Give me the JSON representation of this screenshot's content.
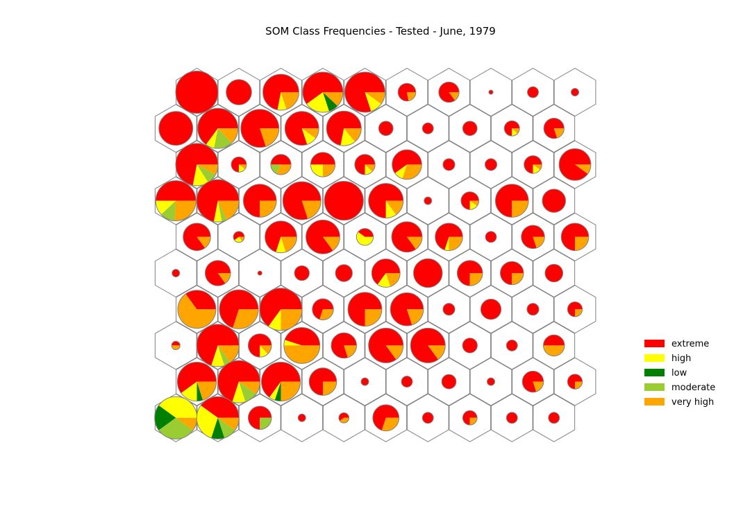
{
  "chart_data": {
    "type": "som-hex-pie",
    "title": "SOM Class Frequencies - Tested - June, 1979",
    "grid": {
      "rows": 10,
      "cols": 10
    },
    "classes": [
      "extreme",
      "high",
      "low",
      "moderate",
      "very high"
    ],
    "colors": {
      "extreme": "#ff0000",
      "high": "#ffff00",
      "low": "#008000",
      "moderate": "#9acd32",
      "very high": "#ffa500"
    },
    "legend": {
      "position": "right",
      "entries": [
        "extreme",
        "high",
        "low",
        "moderate",
        "very high"
      ]
    },
    "cells": [
      {
        "row": 0,
        "col": 0,
        "radius": 1.0,
        "fractions": {
          "extreme": 1.0
        }
      },
      {
        "row": 0,
        "col": 1,
        "radius": 0.6,
        "fractions": {
          "extreme": 1.0
        }
      },
      {
        "row": 0,
        "col": 2,
        "radius": 0.85,
        "fractions": {
          "extreme": 0.72,
          "high": 0.08,
          "very high": 0.2
        }
      },
      {
        "row": 0,
        "col": 3,
        "radius": 0.95,
        "fractions": {
          "extreme": 0.6,
          "high": 0.2,
          "low": 0.08,
          "very high": 0.12
        }
      },
      {
        "row": 0,
        "col": 4,
        "radius": 0.95,
        "fractions": {
          "extreme": 0.8,
          "high": 0.1,
          "very high": 0.1
        }
      },
      {
        "row": 0,
        "col": 5,
        "radius": 0.42,
        "fractions": {
          "extreme": 0.78,
          "very high": 0.22
        }
      },
      {
        "row": 0,
        "col": 6,
        "radius": 0.48,
        "fractions": {
          "extreme": 0.85,
          "very high": 0.15
        }
      },
      {
        "row": 0,
        "col": 7,
        "radius": 0.1,
        "fractions": {
          "extreme": 1.0
        }
      },
      {
        "row": 0,
        "col": 8,
        "radius": 0.26,
        "fractions": {
          "extreme": 1.0
        }
      },
      {
        "row": 0,
        "col": 9,
        "radius": 0.18,
        "fractions": {
          "extreme": 1.0
        }
      },
      {
        "row": 1,
        "col": 0,
        "radius": 0.8,
        "fractions": {
          "extreme": 1.0
        }
      },
      {
        "row": 1,
        "col": 1,
        "radius": 0.95,
        "fractions": {
          "extreme": 0.65,
          "high": 0.07,
          "moderate": 0.15,
          "very high": 0.13
        }
      },
      {
        "row": 1,
        "col": 2,
        "radius": 0.9,
        "fractions": {
          "extreme": 0.8,
          "very high": 0.2
        }
      },
      {
        "row": 1,
        "col": 3,
        "radius": 0.8,
        "fractions": {
          "extreme": 0.8,
          "high": 0.1,
          "very high": 0.1
        }
      },
      {
        "row": 1,
        "col": 4,
        "radius": 0.82,
        "fractions": {
          "extreme": 0.72,
          "high": 0.14,
          "very high": 0.14
        }
      },
      {
        "row": 1,
        "col": 5,
        "radius": 0.34,
        "fractions": {
          "extreme": 1.0
        }
      },
      {
        "row": 1,
        "col": 6,
        "radius": 0.26,
        "fractions": {
          "extreme": 1.0
        }
      },
      {
        "row": 1,
        "col": 7,
        "radius": 0.34,
        "fractions": {
          "extreme": 1.0
        }
      },
      {
        "row": 1,
        "col": 8,
        "radius": 0.36,
        "fractions": {
          "extreme": 0.75,
          "high": 0.13,
          "very high": 0.12
        }
      },
      {
        "row": 1,
        "col": 9,
        "radius": 0.48,
        "fractions": {
          "extreme": 0.8,
          "very high": 0.2
        }
      },
      {
        "row": 2,
        "col": 0,
        "radius": 1.0,
        "fractions": {
          "extreme": 0.72,
          "high": 0.12,
          "moderate": 0.08,
          "very high": 0.08
        }
      },
      {
        "row": 2,
        "col": 1,
        "radius": 0.36,
        "fractions": {
          "extreme": 0.75,
          "high": 0.15,
          "very high": 0.1
        }
      },
      {
        "row": 2,
        "col": 2,
        "radius": 0.48,
        "fractions": {
          "extreme": 0.5,
          "moderate": 0.18,
          "very high": 0.32
        }
      },
      {
        "row": 2,
        "col": 3,
        "radius": 0.58,
        "fractions": {
          "extreme": 0.5,
          "high": 0.25,
          "very high": 0.25
        }
      },
      {
        "row": 2,
        "col": 4,
        "radius": 0.48,
        "fractions": {
          "extreme": 0.75,
          "high": 0.13,
          "very high": 0.12
        }
      },
      {
        "row": 2,
        "col": 5,
        "radius": 0.7,
        "fractions": {
          "extreme": 0.6,
          "high": 0.1,
          "very high": 0.3
        }
      },
      {
        "row": 2,
        "col": 6,
        "radius": 0.28,
        "fractions": {
          "extreme": 1.0
        }
      },
      {
        "row": 2,
        "col": 7,
        "radius": 0.28,
        "fractions": {
          "extreme": 1.0
        }
      },
      {
        "row": 2,
        "col": 8,
        "radius": 0.42,
        "fractions": {
          "extreme": 0.75,
          "high": 0.15,
          "very high": 0.1
        }
      },
      {
        "row": 2,
        "col": 9,
        "radius": 0.75,
        "fractions": {
          "extreme": 0.9,
          "very high": 0.1
        }
      },
      {
        "row": 3,
        "col": 0,
        "radius": 0.95,
        "fractions": {
          "extreme": 0.5,
          "high": 0.12,
          "moderate": 0.12,
          "very high": 0.26
        }
      },
      {
        "row": 3,
        "col": 1,
        "radius": 1.0,
        "fractions": {
          "extreme": 0.72,
          "high": 0.06,
          "moderate": 0.04,
          "very high": 0.18
        }
      },
      {
        "row": 3,
        "col": 2,
        "radius": 0.78,
        "fractions": {
          "extreme": 0.75,
          "very high": 0.25
        }
      },
      {
        "row": 3,
        "col": 3,
        "radius": 0.9,
        "fractions": {
          "extreme": 0.8,
          "very high": 0.2
        }
      },
      {
        "row": 3,
        "col": 4,
        "radius": 0.92,
        "fractions": {
          "extreme": 1.0
        }
      },
      {
        "row": 3,
        "col": 5,
        "radius": 0.82,
        "fractions": {
          "extreme": 0.75,
          "high": 0.1,
          "very high": 0.15
        }
      },
      {
        "row": 3,
        "col": 6,
        "radius": 0.18,
        "fractions": {
          "extreme": 1.0
        }
      },
      {
        "row": 3,
        "col": 7,
        "radius": 0.42,
        "fractions": {
          "extreme": 0.75,
          "high": 0.15,
          "very high": 0.1
        }
      },
      {
        "row": 3,
        "col": 8,
        "radius": 0.78,
        "fractions": {
          "extreme": 0.75,
          "very high": 0.25
        }
      },
      {
        "row": 3,
        "col": 9,
        "radius": 0.55,
        "fractions": {
          "extreme": 1.0
        }
      },
      {
        "row": 4,
        "col": 0,
        "radius": 0.65,
        "fractions": {
          "extreme": 0.85,
          "very high": 0.15
        }
      },
      {
        "row": 4,
        "col": 1,
        "radius": 0.26,
        "fractions": {
          "extreme": 0.6,
          "high": 0.25,
          "very high": 0.15
        }
      },
      {
        "row": 4,
        "col": 2,
        "radius": 0.75,
        "fractions": {
          "extreme": 0.7,
          "high": 0.1,
          "very high": 0.2
        }
      },
      {
        "row": 4,
        "col": 3,
        "radius": 0.8,
        "fractions": {
          "extreme": 0.85,
          "very high": 0.15
        }
      },
      {
        "row": 4,
        "col": 4,
        "radius": 0.4,
        "fractions": {
          "extreme": 0.4,
          "high": 0.6
        }
      },
      {
        "row": 4,
        "col": 5,
        "radius": 0.72,
        "fractions": {
          "extreme": 0.85,
          "very high": 0.15
        }
      },
      {
        "row": 4,
        "col": 6,
        "radius": 0.65,
        "fractions": {
          "extreme": 0.7,
          "high": 0.05,
          "very high": 0.25
        }
      },
      {
        "row": 4,
        "col": 7,
        "radius": 0.26,
        "fractions": {
          "extreme": 1.0
        }
      },
      {
        "row": 4,
        "col": 8,
        "radius": 0.55,
        "fractions": {
          "extreme": 0.8,
          "very high": 0.2
        }
      },
      {
        "row": 4,
        "col": 9,
        "radius": 0.65,
        "fractions": {
          "extreme": 0.75,
          "very high": 0.25
        }
      },
      {
        "row": 5,
        "col": 0,
        "radius": 0.18,
        "fractions": {
          "extreme": 1.0
        }
      },
      {
        "row": 5,
        "col": 1,
        "radius": 0.6,
        "fractions": {
          "extreme": 0.85,
          "very high": 0.15
        }
      },
      {
        "row": 5,
        "col": 2,
        "radius": 0.1,
        "fractions": {
          "extreme": 1.0
        }
      },
      {
        "row": 5,
        "col": 3,
        "radius": 0.35,
        "fractions": {
          "extreme": 1.0
        }
      },
      {
        "row": 5,
        "col": 4,
        "radius": 0.4,
        "fractions": {
          "extreme": 1.0
        }
      },
      {
        "row": 5,
        "col": 5,
        "radius": 0.67,
        "fractions": {
          "extreme": 0.65,
          "high": 0.15,
          "very high": 0.2
        }
      },
      {
        "row": 5,
        "col": 6,
        "radius": 0.68,
        "fractions": {
          "extreme": 1.0
        }
      },
      {
        "row": 5,
        "col": 7,
        "radius": 0.6,
        "fractions": {
          "extreme": 0.75,
          "very high": 0.25
        }
      },
      {
        "row": 5,
        "col": 8,
        "radius": 0.55,
        "fractions": {
          "extreme": 0.75,
          "very high": 0.25
        }
      },
      {
        "row": 5,
        "col": 9,
        "radius": 0.42,
        "fractions": {
          "extreme": 1.0
        }
      },
      {
        "row": 6,
        "col": 0,
        "radius": 0.9,
        "fractions": {
          "extreme": 0.35,
          "very high": 0.65
        }
      },
      {
        "row": 6,
        "col": 1,
        "radius": 0.92,
        "fractions": {
          "extreme": 0.7,
          "very high": 0.3
        }
      },
      {
        "row": 6,
        "col": 2,
        "radius": 1.0,
        "fractions": {
          "extreme": 0.65,
          "high": 0.1,
          "very high": 0.25
        }
      },
      {
        "row": 6,
        "col": 3,
        "radius": 0.5,
        "fractions": {
          "extreme": 0.7,
          "very high": 0.3
        }
      },
      {
        "row": 6,
        "col": 4,
        "radius": 0.8,
        "fractions": {
          "extreme": 0.75,
          "very high": 0.25
        }
      },
      {
        "row": 6,
        "col": 5,
        "radius": 0.78,
        "fractions": {
          "extreme": 0.8,
          "very high": 0.2
        }
      },
      {
        "row": 6,
        "col": 6,
        "radius": 0.28,
        "fractions": {
          "extreme": 1.0
        }
      },
      {
        "row": 6,
        "col": 7,
        "radius": 0.48,
        "fractions": {
          "extreme": 1.0
        }
      },
      {
        "row": 6,
        "col": 8,
        "radius": 0.28,
        "fractions": {
          "extreme": 1.0
        }
      },
      {
        "row": 6,
        "col": 9,
        "radius": 0.35,
        "fractions": {
          "extreme": 0.75,
          "very high": 0.25
        }
      },
      {
        "row": 7,
        "col": 0,
        "radius": 0.2,
        "fractions": {
          "extreme": 0.5,
          "very high": 0.5
        }
      },
      {
        "row": 7,
        "col": 1,
        "radius": 1.0,
        "fractions": {
          "extreme": 0.7,
          "high": 0.1,
          "moderate": 0.05,
          "very high": 0.15
        }
      },
      {
        "row": 7,
        "col": 2,
        "radius": 0.55,
        "fractions": {
          "extreme": 0.75,
          "high": 0.12,
          "very high": 0.13
        }
      },
      {
        "row": 7,
        "col": 3,
        "radius": 0.85,
        "fractions": {
          "extreme": 0.45,
          "high": 0.05,
          "very high": 0.5
        }
      },
      {
        "row": 7,
        "col": 4,
        "radius": 0.6,
        "fractions": {
          "extreme": 0.8,
          "very high": 0.2
        }
      },
      {
        "row": 7,
        "col": 5,
        "radius": 0.82,
        "fractions": {
          "extreme": 0.85,
          "very high": 0.15
        }
      },
      {
        "row": 7,
        "col": 6,
        "radius": 0.82,
        "fractions": {
          "extreme": 0.85,
          "very high": 0.15
        }
      },
      {
        "row": 7,
        "col": 7,
        "radius": 0.35,
        "fractions": {
          "extreme": 1.0
        }
      },
      {
        "row": 7,
        "col": 8,
        "radius": 0.26,
        "fractions": {
          "extreme": 1.0
        }
      },
      {
        "row": 7,
        "col": 9,
        "radius": 0.5,
        "fractions": {
          "extreme": 0.5,
          "very high": 0.5
        }
      },
      {
        "row": 8,
        "col": 0,
        "radius": 0.92,
        "fractions": {
          "extreme": 0.6,
          "high": 0.15,
          "low": 0.05,
          "very high": 0.2
        }
      },
      {
        "row": 8,
        "col": 1,
        "radius": 1.0,
        "fractions": {
          "extreme": 0.7,
          "high": 0.1,
          "moderate": 0.1,
          "very high": 0.1
        }
      },
      {
        "row": 8,
        "col": 2,
        "radius": 0.92,
        "fractions": {
          "extreme": 0.65,
          "high": 0.05,
          "low": 0.05,
          "very high": 0.25
        }
      },
      {
        "row": 8,
        "col": 3,
        "radius": 0.65,
        "fractions": {
          "extreme": 0.75,
          "very high": 0.25
        }
      },
      {
        "row": 8,
        "col": 4,
        "radius": 0.18,
        "fractions": {
          "extreme": 1.0
        }
      },
      {
        "row": 8,
        "col": 5,
        "radius": 0.26,
        "fractions": {
          "extreme": 1.0
        }
      },
      {
        "row": 8,
        "col": 6,
        "radius": 0.34,
        "fractions": {
          "extreme": 1.0
        }
      },
      {
        "row": 8,
        "col": 7,
        "radius": 0.18,
        "fractions": {
          "extreme": 1.0
        }
      },
      {
        "row": 8,
        "col": 8,
        "radius": 0.5,
        "fractions": {
          "extreme": 0.8,
          "very high": 0.2
        }
      },
      {
        "row": 8,
        "col": 9,
        "radius": 0.35,
        "fractions": {
          "extreme": 0.75,
          "very high": 0.25
        }
      },
      {
        "row": 9,
        "col": 0,
        "radius": 1.0,
        "fractions": {
          "low": 0.2,
          "moderate": 0.3,
          "high": 0.4,
          "very high": 0.1
        }
      },
      {
        "row": 9,
        "col": 1,
        "radius": 1.0,
        "fractions": {
          "extreme": 0.4,
          "high": 0.3,
          "low": 0.1,
          "moderate": 0.1,
          "very high": 0.1
        }
      },
      {
        "row": 9,
        "col": 2,
        "radius": 0.55,
        "fractions": {
          "extreme": 0.75,
          "moderate": 0.25
        }
      },
      {
        "row": 9,
        "col": 3,
        "radius": 0.18,
        "fractions": {
          "extreme": 1.0
        }
      },
      {
        "row": 9,
        "col": 4,
        "radius": 0.24,
        "fractions": {
          "extreme": 0.6,
          "very high": 0.4
        }
      },
      {
        "row": 9,
        "col": 5,
        "radius": 0.62,
        "fractions": {
          "extreme": 0.7,
          "very high": 0.3
        }
      },
      {
        "row": 9,
        "col": 6,
        "radius": 0.26,
        "fractions": {
          "extreme": 1.0
        }
      },
      {
        "row": 9,
        "col": 7,
        "radius": 0.34,
        "fractions": {
          "extreme": 0.75,
          "very high": 0.25
        }
      },
      {
        "row": 9,
        "col": 8,
        "radius": 0.26,
        "fractions": {
          "extreme": 1.0
        }
      },
      {
        "row": 9,
        "col": 9,
        "radius": 0.26,
        "fractions": {
          "extreme": 1.0
        }
      }
    ]
  }
}
